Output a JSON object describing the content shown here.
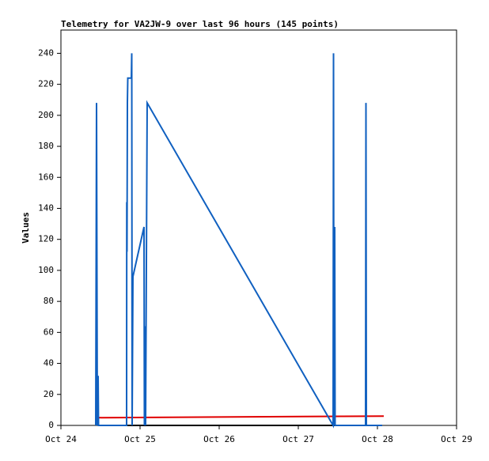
{
  "chart_data": {
    "type": "line",
    "title": "Telemetry for VA2JW-9 over last 96 hours (145 points)",
    "y_label": "Values",
    "xlim": [
      24,
      29
    ],
    "xticks": [
      {
        "value": 24,
        "label": "Oct 24"
      },
      {
        "value": 25,
        "label": "Oct 25"
      },
      {
        "value": 26,
        "label": "Oct 26"
      },
      {
        "value": 27,
        "label": "Oct 27"
      },
      {
        "value": 28,
        "label": "Oct 28"
      },
      {
        "value": 29,
        "label": "Oct 29"
      }
    ],
    "ylim": [
      0,
      255
    ],
    "yticks": [
      0,
      20,
      40,
      60,
      80,
      100,
      120,
      140,
      160,
      180,
      200,
      220,
      240
    ],
    "series": [
      {
        "color": "#1060c0",
        "x": [
          24.44,
          24.45,
          24.455,
          24.46,
          24.47,
          24.475,
          24.83,
          24.832,
          24.835,
          24.84,
          24.845,
          24.89,
          24.895,
          24.9,
          24.91,
          25.05,
          25.055,
          25.06,
          25.07,
          25.08,
          25.09,
          27.44,
          27.445,
          27.45,
          27.46,
          27.465,
          27.85,
          27.855,
          27.86,
          28.06
        ],
        "values": [
          0,
          208,
          104,
          0,
          32,
          0,
          0,
          144,
          112,
          208,
          224,
          224,
          240,
          0,
          96,
          128,
          0,
          64,
          0,
          104,
          208,
          0,
          240,
          0,
          128,
          0,
          0,
          208,
          0,
          0
        ]
      },
      {
        "color": "#e00000",
        "x": [
          24.48,
          28.08
        ],
        "values": [
          5,
          6
        ]
      },
      {
        "color": "#000000",
        "x": [
          24.48,
          28.06
        ],
        "values": [
          0,
          0
        ]
      }
    ]
  }
}
